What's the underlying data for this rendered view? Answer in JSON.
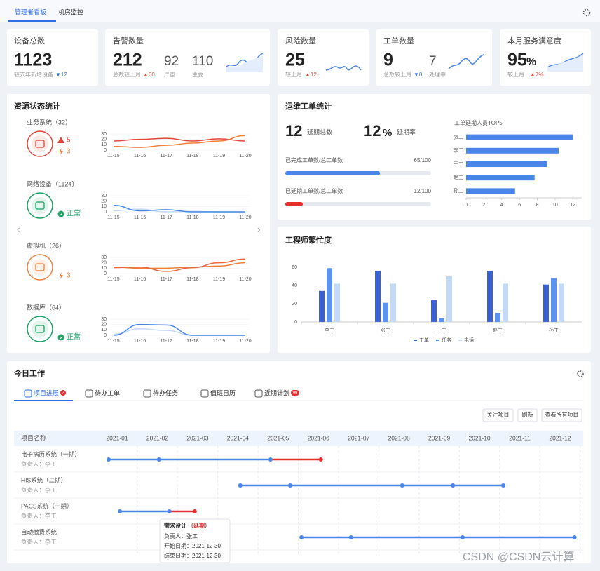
{
  "tabs": [
    "管理者看板",
    "机房监控"
  ],
  "kpis": [
    {
      "title": "设备总数",
      "value": 1123,
      "note": "较去年新增设备",
      "delta": "▼12",
      "trend": "down"
    },
    {
      "title": "告警数量",
      "value": 212,
      "note": "总数较上月",
      "delta": "▲60",
      "trend": "up",
      "extras": [
        {
          "value": 92,
          "label": "严重"
        },
        {
          "value": 110,
          "label": "主要"
        }
      ]
    },
    {
      "title": "风险数量",
      "value": 25,
      "note": "较上月",
      "delta": "▲12",
      "trend": "up"
    },
    {
      "title": "工单数量",
      "value": 9,
      "note": "总数较上月",
      "delta": "▼0",
      "trend": "down",
      "extras": [
        {
          "value": 7,
          "label": "处理中"
        }
      ]
    },
    {
      "title": "本月服务满意度",
      "value": 95,
      "unit": "%",
      "note": "较上月",
      "delta": "▲7%",
      "trend": "up"
    }
  ],
  "resource": {
    "title": "资源状态统计",
    "items": [
      {
        "name": "业务系统（32）",
        "color": "#e0463c",
        "status": [
          {
            "icon": "warning",
            "text": "5",
            "color": "#e0463c"
          },
          {
            "icon": "bolt",
            "text": "3",
            "color": "#f0803c"
          }
        ],
        "chart": {
          "type": "line",
          "categories": [
            "11-15",
            "11-16",
            "11-17",
            "11-18",
            "11-19",
            "11-20"
          ],
          "ylim": [
            0,
            30
          ],
          "yticks": [
            0,
            10,
            20,
            30
          ],
          "series": [
            {
              "color": "#e0463c",
              "values": [
                17,
                20,
                22,
                17,
                21,
                17
              ]
            },
            {
              "color": "#f0803c",
              "values": [
                7,
                5,
                9,
                13,
                17,
                27
              ]
            }
          ]
        }
      },
      {
        "name": "网络设备（1124）",
        "color": "#19a463",
        "status": [
          {
            "icon": "check",
            "text": "正常",
            "color": "#19a463"
          }
        ],
        "chart": {
          "type": "line",
          "categories": [
            "11-15",
            "11-16",
            "11-17",
            "11-18",
            "11-19",
            "11-20"
          ],
          "ylim": [
            0,
            30
          ],
          "yticks": [
            0,
            10,
            20,
            30
          ],
          "series": [
            {
              "color": "#c5d8f5",
              "values": [
                2,
                5,
                0,
                1,
                0,
                0
              ]
            },
            {
              "color": "#4a86e8",
              "values": [
                12,
                2,
                4,
                0,
                0,
                0
              ]
            }
          ]
        }
      },
      {
        "name": "虚拟机（26）",
        "color": "#f0803c",
        "status": [
          {
            "icon": "bolt",
            "text": "3",
            "color": "#f0803c"
          }
        ],
        "chart": {
          "type": "line",
          "categories": [
            "11-15",
            "11-16",
            "11-17",
            "11-18",
            "11-19",
            "11-20"
          ],
          "ylim": [
            0,
            30
          ],
          "yticks": [
            0,
            10,
            20,
            30
          ],
          "series": [
            {
              "color": "#f0803c",
              "values": [
                12,
                10,
                10,
                12,
                14,
                20
              ]
            },
            {
              "color": "#e8683a",
              "values": [
                11,
                12,
                4,
                11,
                20,
                27
              ]
            }
          ]
        }
      },
      {
        "name": "数据库（64）",
        "color": "#19a463",
        "status": [
          {
            "icon": "check",
            "text": "正常",
            "color": "#19a463"
          }
        ],
        "chart": {
          "type": "line",
          "categories": [
            "11-15",
            "11-16",
            "11-17",
            "11-18",
            "11-19",
            "11-20"
          ],
          "ylim": [
            0,
            30
          ],
          "yticks": [
            0,
            10,
            20,
            30
          ],
          "series": [
            {
              "color": "#c5d8f5",
              "values": [
                2,
                12,
                9,
                0,
                0,
                0
              ]
            },
            {
              "color": "#4a86e8",
              "values": [
                0,
                20,
                19,
                0,
                0,
                0
              ]
            }
          ]
        }
      }
    ]
  },
  "workorders": {
    "title": "运维工单统计",
    "stats": [
      {
        "value": 12,
        "label": "延期总数"
      },
      {
        "value": 12,
        "unit": "%",
        "label": "延期率"
      }
    ],
    "progress": [
      {
        "label": "已完成工单数/总工单数",
        "done": 65,
        "total": 100,
        "value_label": "65/100",
        "color": "#4a86e8"
      },
      {
        "label": "已延期工单数/总工单数",
        "done": 12,
        "total": 100,
        "value_label": "12/100",
        "color": "#e52e2e"
      }
    ],
    "top5": {
      "type": "hbar",
      "title": "工单延期人员TOP5",
      "categories": [
        "张工",
        "李工",
        "王工",
        "赵工",
        "孙工"
      ],
      "values": [
        12,
        10.4,
        9.1,
        7.7,
        5.5
      ],
      "xlim": [
        0,
        13
      ],
      "xticks": [
        0,
        2,
        4,
        6,
        8,
        10,
        12
      ],
      "color": "#4a86e8"
    }
  },
  "busy": {
    "type": "bar",
    "title": "工程师繁忙度",
    "categories": [
      "李工",
      "张工",
      "王工",
      "赵工",
      "孙工"
    ],
    "ylim": [
      0,
      70
    ],
    "yticks": [
      0,
      20,
      40,
      60
    ],
    "series": [
      {
        "name": "工单",
        "color": "#3a62d1",
        "values": [
          34,
          56,
          24,
          56,
          41
        ]
      },
      {
        "name": "任务",
        "color": "#5b93ee",
        "values": [
          59,
          21,
          4,
          10,
          48
        ]
      },
      {
        "name": "电话",
        "color": "#c2dafa",
        "values": [
          42,
          42,
          50,
          42,
          42
        ]
      }
    ]
  },
  "today": {
    "title": "今日工作",
    "tabs": [
      {
        "label": "项目进展",
        "badge": "2"
      },
      {
        "label": "待办工单"
      },
      {
        "label": "待办任务"
      },
      {
        "label": "值班日历"
      },
      {
        "label": "近期计划",
        "badge": "99"
      }
    ],
    "buttons": [
      "关注项目",
      "刷新",
      "查看所有项目"
    ],
    "gantt": {
      "header": "项目名称",
      "months": [
        "2021-01",
        "2021-02",
        "2021-03",
        "2021-04",
        "2021-05",
        "2021-06",
        "2021-07",
        "2021-08",
        "2021-09",
        "2021-10",
        "2021-11",
        "2021-12"
      ],
      "xlim": [
        0,
        12
      ],
      "color": "#4a86e8",
      "delay_color": "#e52e2e",
      "rows": [
        {
          "name": "电子病历系统（一期）",
          "owner": "负责人：李工",
          "milestones": [
            0.29,
            1.54,
            4.31
          ],
          "delayed_end": 5.56
        },
        {
          "name": "HIS系统（二期）",
          "owner": "负责人：李工",
          "milestones": [
            3.56,
            4.8,
            7.58,
            8.84,
            10.09
          ]
        },
        {
          "name": "PACS系统（一期）",
          "owner": "负责人：李工",
          "milestones": [
            0.57,
            1.8
          ],
          "delayed_end": 2.43
        },
        {
          "name": "自动缴费系统",
          "owner": "负责人：李工",
          "milestones": [
            5.08,
            6.31,
            9.08,
            11.86
          ]
        }
      ],
      "tooltip": {
        "title": "需求设计",
        "status": "（延期）",
        "lines": [
          "负责人：张工",
          "开始日期：2021-12-30",
          "结束日期：2021-12-30"
        ]
      }
    }
  },
  "watermark": "CSDN @CSDN云计算"
}
